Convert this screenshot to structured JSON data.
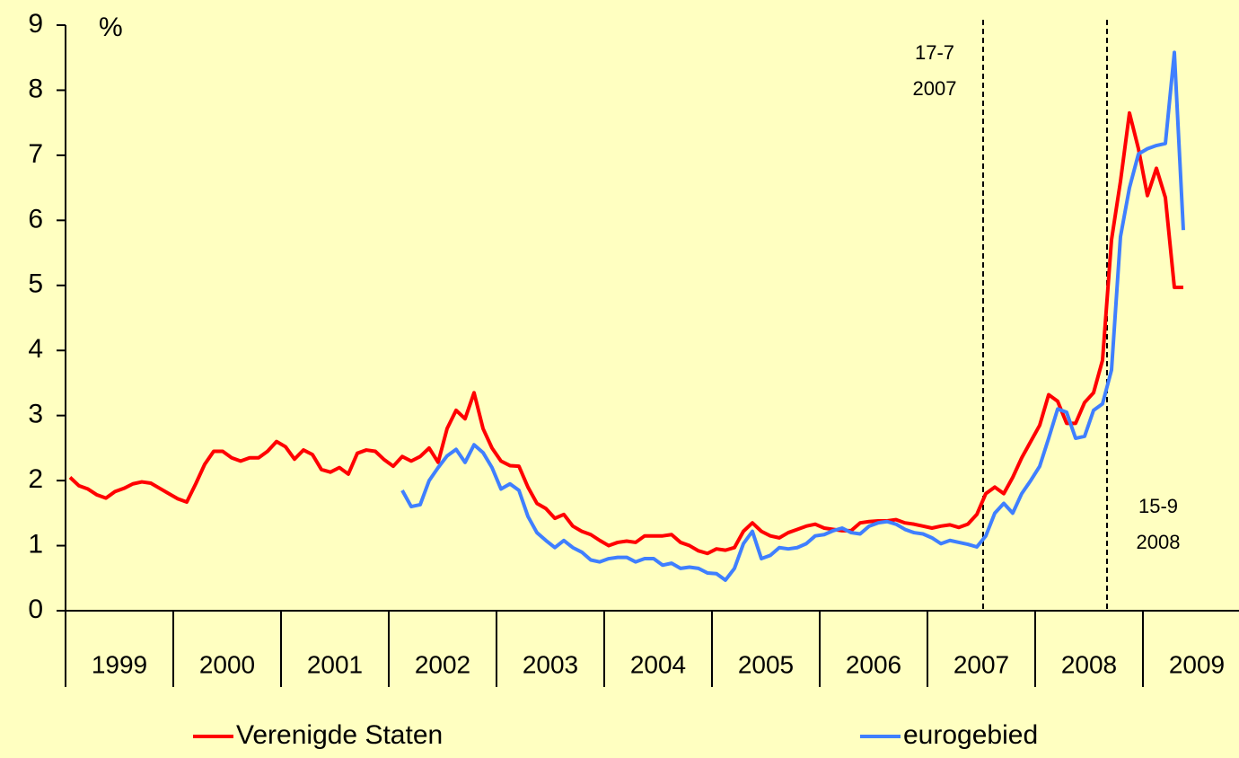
{
  "chart_data": {
    "type": "line",
    "y_label": "%",
    "categories": [
      "1999",
      null,
      null,
      null,
      null,
      null,
      null,
      null,
      null,
      null,
      null,
      null,
      "2000",
      null,
      null,
      null,
      null,
      null,
      null,
      null,
      null,
      null,
      null,
      null,
      "2001",
      null,
      null,
      null,
      null,
      null,
      null,
      null,
      null,
      null,
      null,
      null,
      "2002",
      null,
      null,
      null,
      null,
      null,
      null,
      null,
      null,
      null,
      null,
      null,
      "2003",
      null,
      null,
      null,
      null,
      null,
      null,
      null,
      null,
      null,
      null,
      null,
      "2004",
      null,
      null,
      null,
      null,
      null,
      null,
      null,
      null,
      null,
      null,
      null,
      "2005",
      null,
      null,
      null,
      null,
      null,
      null,
      null,
      null,
      null,
      null,
      null,
      "2006",
      null,
      null,
      null,
      null,
      null,
      null,
      null,
      null,
      null,
      null,
      null,
      "2007",
      null,
      null,
      null,
      null,
      null,
      null,
      null,
      null,
      null,
      null,
      null,
      "2008",
      null,
      null,
      null,
      null,
      null,
      null,
      null,
      null,
      null,
      null,
      null,
      "2009",
      null,
      null,
      null,
      null
    ],
    "series": [
      {
        "name": "Verenigde Staten",
        "color": "#ff0000",
        "values": [
          2.05,
          1.92,
          1.87,
          1.78,
          1.73,
          1.83,
          1.88,
          1.95,
          1.98,
          1.96,
          1.88,
          1.8,
          1.72,
          1.67,
          1.95,
          2.25,
          2.45,
          2.45,
          2.35,
          2.3,
          2.35,
          2.35,
          2.45,
          2.6,
          2.52,
          2.33,
          2.47,
          2.4,
          2.17,
          2.13,
          2.2,
          2.1,
          2.42,
          2.47,
          2.45,
          2.32,
          2.22,
          2.37,
          2.3,
          2.37,
          2.5,
          2.28,
          2.8,
          3.08,
          2.95,
          3.35,
          2.8,
          2.5,
          2.3,
          2.23,
          2.22,
          1.9,
          1.65,
          1.57,
          1.42,
          1.48,
          1.3,
          1.22,
          1.17,
          1.08,
          1.0,
          1.05,
          1.07,
          1.05,
          1.15,
          1.15,
          1.15,
          1.17,
          1.05,
          1.0,
          0.92,
          0.88,
          0.95,
          0.93,
          0.97,
          1.22,
          1.35,
          1.22,
          1.15,
          1.12,
          1.2,
          1.25,
          1.3,
          1.33,
          1.27,
          1.25,
          1.23,
          1.23,
          1.35,
          1.37,
          1.38,
          1.38,
          1.4,
          1.35,
          1.33,
          1.3,
          1.27,
          1.3,
          1.32,
          1.28,
          1.33,
          1.48,
          1.8,
          1.9,
          1.8,
          2.05,
          2.35,
          2.6,
          2.85,
          3.32,
          3.22,
          2.88,
          2.88,
          3.2,
          3.35,
          3.85,
          5.7,
          6.6,
          7.65,
          7.1,
          6.38,
          6.8,
          6.35,
          4.97,
          4.97
        ]
      },
      {
        "name": "eurogebied",
        "color": "#3f7fff",
        "values": [
          null,
          null,
          null,
          null,
          null,
          null,
          null,
          null,
          null,
          null,
          null,
          null,
          null,
          null,
          null,
          null,
          null,
          null,
          null,
          null,
          null,
          null,
          null,
          null,
          null,
          null,
          null,
          null,
          null,
          null,
          null,
          null,
          null,
          null,
          null,
          null,
          null,
          1.85,
          1.6,
          1.63,
          2.0,
          2.2,
          2.38,
          2.48,
          2.28,
          2.55,
          2.43,
          2.2,
          1.87,
          1.95,
          1.85,
          1.45,
          1.2,
          1.08,
          0.97,
          1.08,
          0.97,
          0.9,
          0.78,
          0.75,
          0.8,
          0.82,
          0.82,
          0.75,
          0.8,
          0.8,
          0.7,
          0.73,
          0.65,
          0.67,
          0.65,
          0.58,
          0.57,
          0.47,
          0.65,
          1.03,
          1.22,
          0.8,
          0.85,
          0.97,
          0.95,
          0.97,
          1.03,
          1.15,
          1.17,
          1.23,
          1.27,
          1.2,
          1.18,
          1.3,
          1.35,
          1.37,
          1.33,
          1.25,
          1.2,
          1.18,
          1.12,
          1.03,
          1.08,
          1.05,
          1.02,
          0.98,
          1.15,
          1.5,
          1.65,
          1.5,
          1.8,
          2.0,
          2.22,
          2.65,
          3.1,
          3.05,
          2.65,
          2.68,
          3.08,
          3.18,
          3.7,
          5.75,
          6.5,
          7.02,
          7.1,
          7.15,
          7.18,
          8.58,
          5.85
        ]
      }
    ],
    "ylim": [
      0,
      9
    ],
    "yticks": [
      0,
      1,
      2,
      3,
      4,
      5,
      6,
      7,
      8,
      9
    ],
    "vlines": [
      {
        "x": 101.7,
        "label": [
          "17-7",
          "2007"
        ]
      },
      {
        "x": 115.5,
        "label": [
          "15-9",
          "2008"
        ]
      }
    ],
    "grid": false
  }
}
